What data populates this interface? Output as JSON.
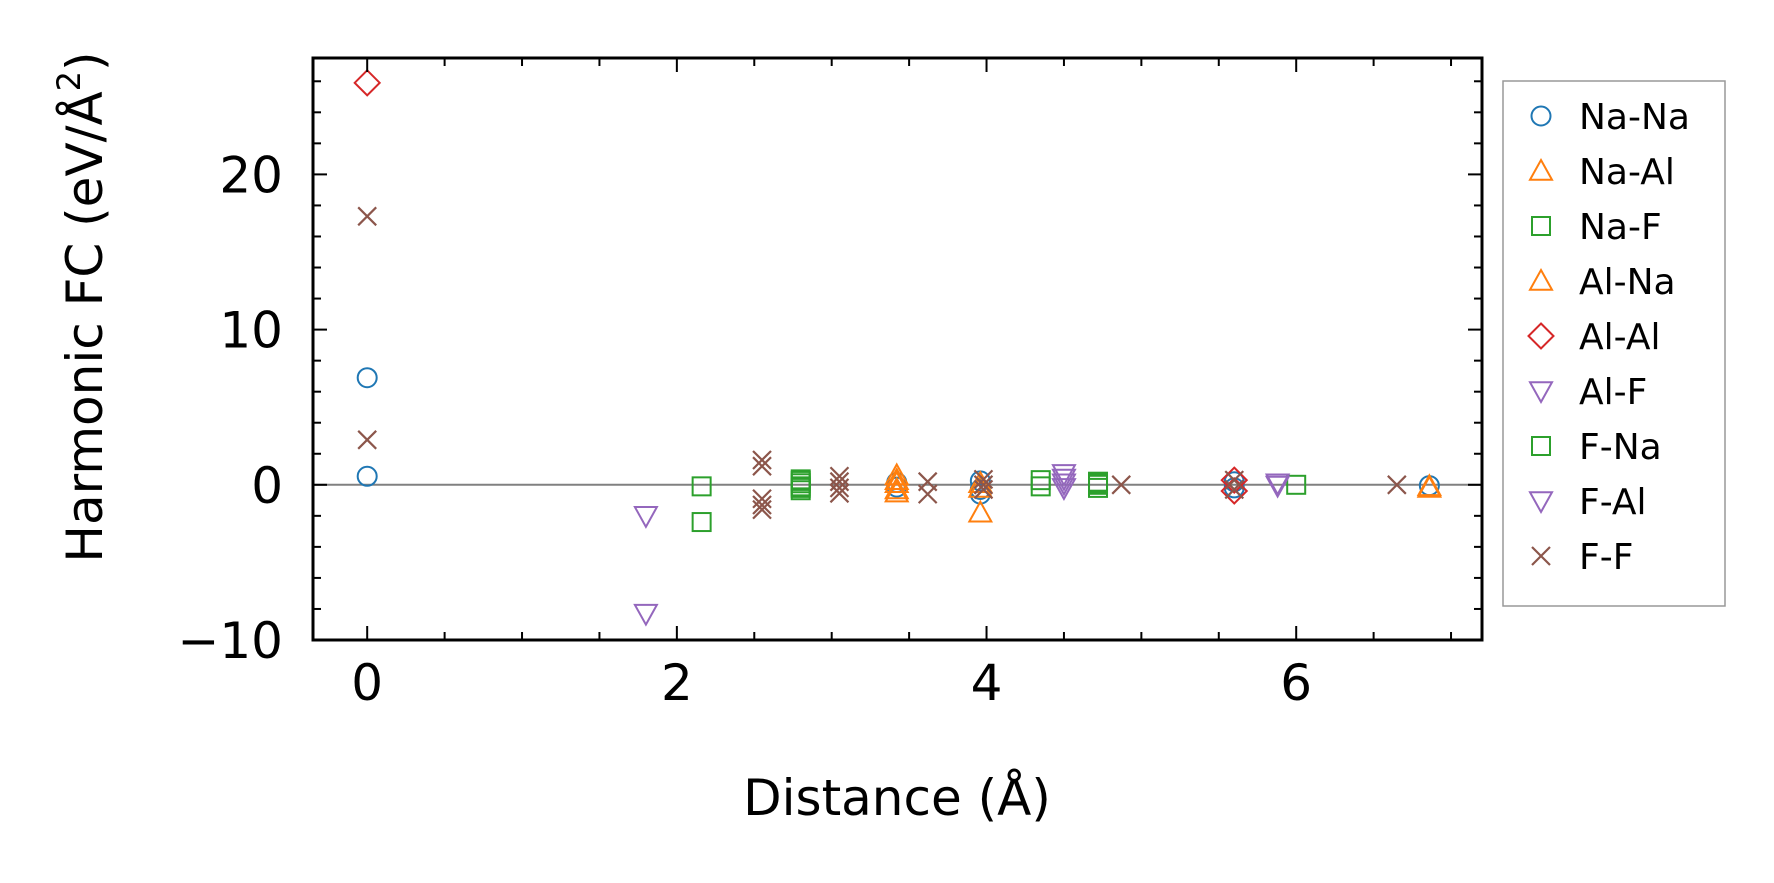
{
  "chart_data": {
    "type": "scatter",
    "title": "",
    "xlabel": "Distance (Å)",
    "ylabel": "Harmonic FC (eV/Å²)",
    "ylabel_parts": {
      "main": "Harmonic FC (eV/Å",
      "sup": "2",
      "tail": ")"
    },
    "xlim": [
      -0.35,
      7.2
    ],
    "ylim": [
      -10,
      27.5
    ],
    "xticks": [
      0,
      2,
      4,
      6
    ],
    "yticks": [
      -10,
      0,
      10,
      20
    ],
    "xtick_labels": [
      "0",
      "2",
      "4",
      "6"
    ],
    "ytick_labels": [
      "−10",
      "0",
      "10",
      "20"
    ],
    "grid": false,
    "zero_line": true,
    "legend_position": "outside-right",
    "series": [
      {
        "name": "Na-Na",
        "marker": "circle",
        "color": "#1f77b4",
        "filled": false,
        "x": [
          0,
          0,
          3.42,
          3.42,
          3.96,
          3.96,
          3.96,
          5.6,
          5.6,
          6.86
        ],
        "y": [
          6.9,
          0.55,
          0.15,
          -0.15,
          0.25,
          -0.3,
          -0.6,
          0.2,
          -0.2,
          -0.05
        ]
      },
      {
        "name": "Na-Al",
        "marker": "triangle-up",
        "color": "#ff7f0e",
        "filled": false,
        "x": [
          3.42,
          3.42,
          3.42,
          3.96,
          3.96,
          6.86
        ],
        "y": [
          0.6,
          0.1,
          -0.5,
          0.1,
          -1.8,
          -0.1
        ]
      },
      {
        "name": "Na-F",
        "marker": "square",
        "color": "#2ca02c",
        "filled": false,
        "x": [
          2.16,
          2.16,
          2.8,
          2.8,
          4.35,
          4.35,
          4.72,
          6.0
        ],
        "y": [
          -0.1,
          -2.4,
          0.25,
          -0.2,
          0.3,
          -0.1,
          0.1,
          0.0
        ]
      },
      {
        "name": "Al-Na",
        "marker": "triangle-up",
        "color": "#ff7f0e",
        "filled": false,
        "x": [
          3.42,
          3.42,
          3.96,
          6.86
        ],
        "y": [
          0.3,
          -0.3,
          -0.2,
          -0.2
        ]
      },
      {
        "name": "Al-Al",
        "marker": "diamond",
        "color": "#d62728",
        "filled": false,
        "x": [
          0,
          5.6,
          5.6
        ],
        "y": [
          25.9,
          0.3,
          -0.4
        ]
      },
      {
        "name": "Al-F",
        "marker": "triangle-down",
        "color": "#9467bd",
        "filled": false,
        "x": [
          1.8,
          1.8,
          4.5,
          4.5,
          5.88
        ],
        "y": [
          -2.0,
          -8.3,
          0.7,
          0.1,
          0.1
        ]
      },
      {
        "name": "F-Na",
        "marker": "square",
        "color": "#2ca02c",
        "filled": false,
        "x": [
          2.8,
          2.8,
          2.8,
          2.8,
          4.72,
          4.72,
          4.72
        ],
        "y": [
          0.35,
          0.1,
          -0.1,
          -0.35,
          0.2,
          0.0,
          -0.2
        ]
      },
      {
        "name": "F-Al",
        "marker": "triangle-down",
        "color": "#9467bd",
        "filled": false,
        "x": [
          4.5,
          4.5,
          5.88
        ],
        "y": [
          0.4,
          -0.2,
          -0.05
        ]
      },
      {
        "name": "F-F",
        "marker": "x",
        "color": "#8c564b",
        "filled": false,
        "x": [
          0,
          0,
          2.55,
          2.55,
          2.55,
          2.55,
          2.55,
          3.05,
          3.05,
          3.05,
          3.05,
          3.62,
          3.62,
          3.98,
          3.98,
          3.98,
          4.87,
          5.6,
          5.6,
          6.65
        ],
        "y": [
          17.3,
          2.9,
          1.6,
          1.2,
          -0.9,
          -1.3,
          -1.6,
          0.55,
          0.2,
          -0.2,
          -0.55,
          0.2,
          -0.6,
          0.35,
          0.0,
          -0.3,
          0.0,
          0.3,
          -0.3,
          0.0
        ]
      }
    ]
  }
}
